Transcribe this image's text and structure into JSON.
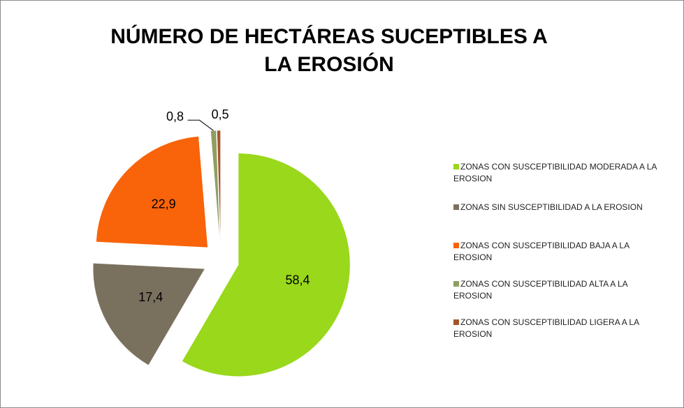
{
  "chart_data": {
    "type": "pie",
    "title": "NÚMERO DE HECTÁREAS SUCEPTIBLES A LA EROSIÓN",
    "categories": [
      "ZONAS CON SUSCEPTIBILIDAD MODERADA A LA EROSION",
      "ZONAS SIN SUSCEPTIBILIDAD A LA EROSION",
      "ZONAS CON SUSCEPTIBILIDAD BAJA A LA EROSION",
      "ZONAS CON SUSCEPTIBILIDAD ALTA A LA EROSION",
      "ZONAS CON SUSCEPTIBILIDAD LIGERA A LA EROSION"
    ],
    "values": [
      58.4,
      17.4,
      22.9,
      0.8,
      0.5
    ],
    "value_labels": [
      "58,4",
      "17,4",
      "22,9",
      "0,8",
      "0,5"
    ],
    "colors": [
      "#99d81a",
      "#7a705e",
      "#f9630a",
      "#8e9e60",
      "#a5532c"
    ],
    "legend": "right"
  }
}
